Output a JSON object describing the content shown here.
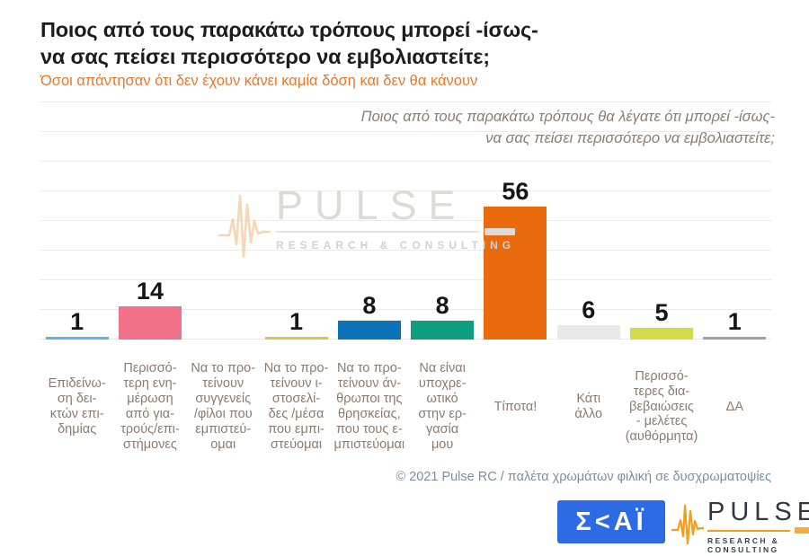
{
  "header": {
    "title": "Ποιος από τους παρακάτω τρόπους μπορεί -ίσως-\nνα σας πείσει περισσότερο να εμβολιαστείτε;",
    "subtitle": "Όσοι απάντησαν ότι δεν έχουν κάνει καμία δόση και δεν θα κάνουν",
    "title_color": "#1d1d1d",
    "subtitle_color": "#e8772a"
  },
  "question_note": "Ποιος από τους παρακάτω τρόπους θα λέγατε ότι μπορεί -ίσως-\nνα σας πείσει περισσότερο να εμβολιαστείτε;",
  "chart_data": {
    "type": "bar",
    "title": "Ποιος από τους παρακάτω τρόπους μπορεί -ίσως- να σας πείσει περισσότερο να εμβολιαστείτε;",
    "subtitle": "Όσοι απάντησαν ότι δεν έχουν κάνει καμία δόση και δεν θα κάνουν",
    "categories": [
      "Επιδείνωση δεικτών επιδημίας",
      "Περισσότερη ενημέρωση από γιατρούς/επιστήμονες",
      "Να το προτείνουν συγγενείς/φίλοι που εμπιστεύομαι",
      "Να το προτείνουν ιστοσελίδες/μέσα που εμπιστεύομαι",
      "Να το προτείνουν άνθρωποι της θρησκείας, που τους εμπιστεύομαι",
      "Να είναι υποχρεωτικό στην εργασία μου",
      "Τίποτα!",
      "Κάτι άλλο",
      "Περισσότερες διαβεβαιώσεις - μελέτες (αυθόρμητα)",
      "ΔΑ"
    ],
    "categories_display": [
      "Επιδείνω-\nση δει-\nκτών επι-\nδημίας",
      "Περισσό-\nτερη ενη-\nμέρωση\nαπό για-\nτρούς/επι-\nστήμονες",
      "Να το προ-\nτείνουν\nσυγγενείς\n/φίλοι που\nεμπιστεύ-\nομαι",
      "Να το προ-\nτείνουν ι-\nστοσελί-\nδες /μέσα\nπου εμπι-\nστεύομαι",
      "Να το προ-\nτείνουν άν-\nθρωποι της\nθρησκείας,\nπου τους ε-\nμπιστεύομαι",
      "Να είναι\nυποχρε-\nωτικό\nστην ερ-\nγασία\nμου",
      "Τίποτα!",
      "Κάτι\nάλλο",
      "Περισσό-\nτερες δια-\nβεβαιώσεις\n- μελέτες\n(αυθόρμητα)",
      "ΔΑ"
    ],
    "values": [
      1,
      14,
      null,
      1,
      8,
      8,
      56,
      6,
      5,
      1
    ],
    "bar_colors": [
      "#5ab4e5",
      "#f2728c",
      null,
      "#e2c04a",
      "#0b72b8",
      "#0c9e7f",
      "#ea6a0e",
      "#e9e9e7",
      "#d3dc46",
      "#a3a3a1"
    ],
    "value_label_color": "#161616",
    "xlabel": "",
    "ylabel": "",
    "ylim": [
      0,
      100
    ],
    "grid": true,
    "legend": false
  },
  "watermark": {
    "brand": "PULSE",
    "tagline": "RESEARCH & CONSULTING"
  },
  "footer": {
    "copyright": "© 2021 Pulse RC  /  παλέτα χρωμάτων φιλική σε δυσχρωματοψίες"
  },
  "logos": {
    "skai": {
      "name": "ΣΚΑΪ",
      "display": "Σ<ΑΪ",
      "bg": "#2c6be4"
    },
    "pulse": {
      "brand": "PULSE",
      "tagline": "RESEARCH & CONSULTING",
      "accent": "#f59c1c"
    }
  }
}
